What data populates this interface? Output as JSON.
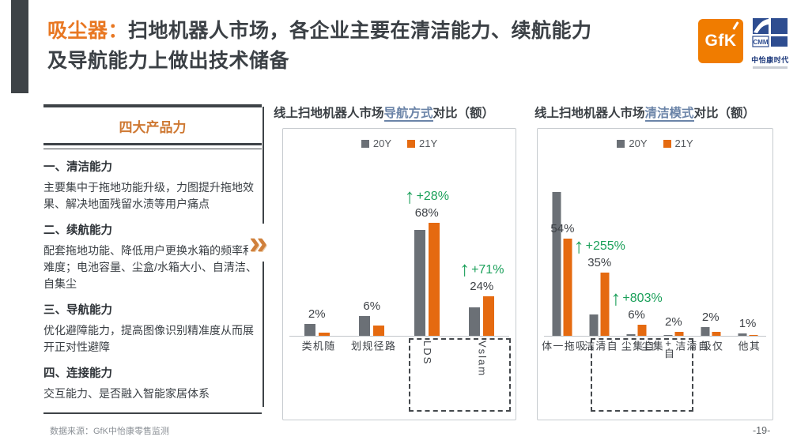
{
  "colors": {
    "accent_orange": "#E87722",
    "bar_20y": "#6B7076",
    "bar_21y": "#E56A10",
    "growth_green": "#1BA05A",
    "keyword_blue": "#6B84A8",
    "dark": "#3E4347"
  },
  "header": {
    "category_prefix": "吸尘器：",
    "title_line1": "扫地机器人市场，各企业主要在清洁能力、续航能力",
    "title_line2": "及导航能力上做出技术储备",
    "gfk_logo": "GfK",
    "cmm_abbr": "CMM",
    "cmm_name": "中怡康时代"
  },
  "sidebar": {
    "header": "四大产品力",
    "items": [
      {
        "heading": "一、清洁能力",
        "body": "主要集中于拖地功能升级，力图提升拖地效果、解决地面残留水渍等用户痛点"
      },
      {
        "heading": "二、续航能力",
        "body": "配套拖地功能、降低用户更换水箱的频率和难度；电池容量、尘盒/水箱大小、自清洁、自集尘"
      },
      {
        "heading": "三、导航能力",
        "body": "优化避障能力，提高图像识别精准度从而展开正对性避障"
      },
      {
        "heading": "四、连接能力",
        "body": "交互能力、是否融入智能家居体系"
      }
    ],
    "source": "数据来源：GfK中怡康零售监测"
  },
  "divider": {
    "chevron": "»"
  },
  "footer": {
    "page_number": "-19-"
  },
  "chart_data": [
    {
      "type": "bar",
      "title_prefix": "线上扫地机器人市场",
      "title_keyword": "导航方式",
      "title_suffix": "对比（额）",
      "legend_position": "top",
      "categories": [
        "随机类",
        "路径规划",
        "LDS",
        "Vslam"
      ],
      "series": [
        {
          "name": "20Y",
          "values": [
            7,
            12,
            64,
            17
          ]
        },
        {
          "name": "21Y",
          "values": [
            2,
            6,
            68,
            24
          ]
        }
      ],
      "value_labels": [
        "2%",
        "6%",
        "68%",
        "24%"
      ],
      "growth_labels": [
        null,
        null,
        "+28%",
        "+71%"
      ],
      "highlight_range": [
        2,
        3
      ],
      "ylim": [
        0,
        125
      ],
      "unit": "%"
    },
    {
      "type": "bar",
      "title_prefix": "线上扫地机器人市场",
      "title_keyword": "清洁模式",
      "title_suffix": "对比（额）",
      "legend_position": "top",
      "categories": [
        "吸拖一体",
        "自清洁",
        "自集尘",
        "自清洁+自集尘",
        "仅吸",
        "其他"
      ],
      "series": [
        {
          "name": "20Y",
          "values": [
            80,
            12,
            0.8,
            0.2,
            5,
            1.5
          ]
        },
        {
          "name": "21Y",
          "values": [
            54,
            35,
            6,
            2,
            2,
            0.5
          ]
        }
      ],
      "value_labels": [
        "54%",
        "35%",
        "6%",
        "2%",
        "2%",
        "1%"
      ],
      "growth_labels": [
        null,
        "+255%",
        "+803%",
        null,
        null,
        null
      ],
      "highlight_range": [
        1,
        3
      ],
      "ylim": [
        0,
        115
      ],
      "unit": "%"
    }
  ]
}
